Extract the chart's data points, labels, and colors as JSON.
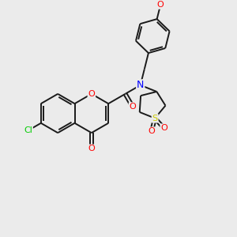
{
  "bg_color": "#ebebeb",
  "atom_colors": {
    "O": "#ff0000",
    "N": "#0000ff",
    "S": "#cccc00",
    "Cl": "#00cc00"
  },
  "bond_color": "#1a1a1a",
  "bond_width": 1.4,
  "fig_width": 3.0,
  "fig_height": 3.0,
  "dpi": 100
}
